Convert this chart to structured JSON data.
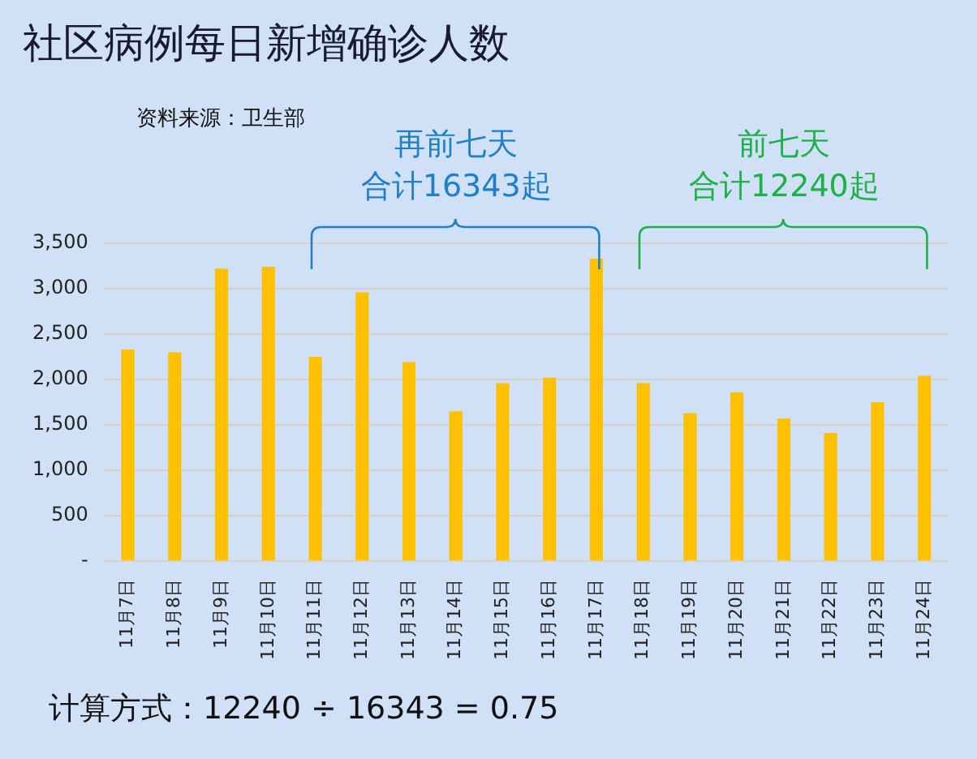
{
  "chart_data": {
    "type": "bar",
    "title": "社区病例每日新增确诊人数",
    "categories": [
      "11月7日",
      "11月8日",
      "11月9日",
      "11月10日",
      "11月11日",
      "11月12日",
      "11月13日",
      "11月14日",
      "11月15日",
      "11月16日",
      "11月17日",
      "11月18日",
      "11月19日",
      "11月20日",
      "11月21日",
      "11月22日",
      "11月23日",
      "11月24日"
    ],
    "values": [
      2330,
      2300,
      3220,
      3240,
      2250,
      2960,
      2190,
      1650,
      1960,
      2020,
      3330,
      1960,
      1630,
      1860,
      1570,
      1410,
      1750,
      2040
    ],
    "color": "#ffc000",
    "ylim": [
      0,
      3500
    ],
    "yticks": [
      {
        "value": 0,
        "label": "-"
      },
      500,
      {
        "value": 1000,
        "label": "1,000"
      },
      {
        "value": 1500,
        "label": "1,500"
      },
      {
        "value": 2000,
        "label": "2,000"
      },
      {
        "value": 2500,
        "label": "2,500"
      },
      {
        "value": 3000,
        "label": "3,000"
      },
      {
        "value": 3500,
        "label": "3,500"
      }
    ],
    "grid": "y",
    "annotations": [
      "资料来源：卫生部",
      "再前七天",
      "合计16343起",
      "前七天",
      "合计12240起",
      "计算方式：12240 ÷ 16343 = 0.75"
    ]
  }
}
